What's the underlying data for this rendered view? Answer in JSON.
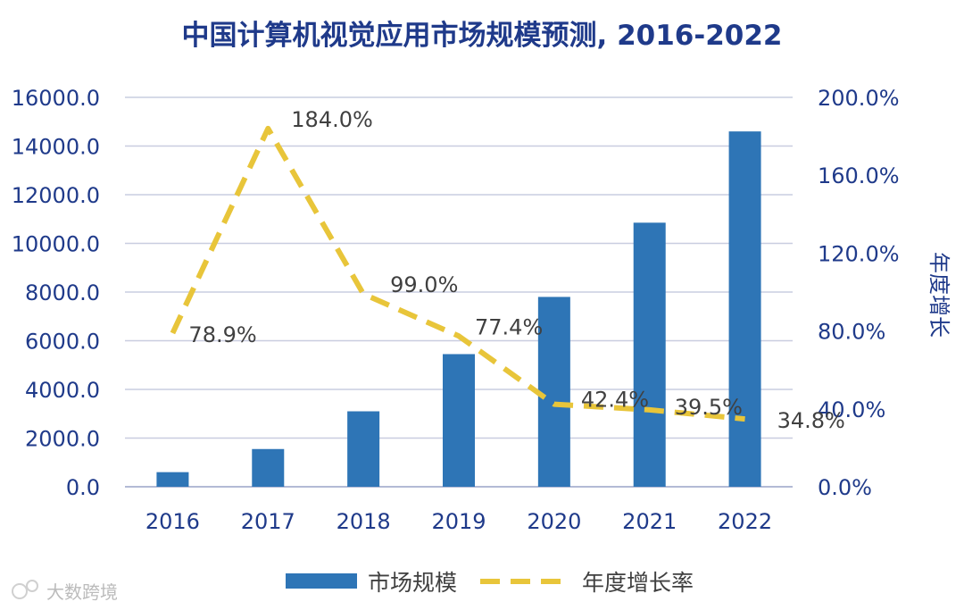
{
  "chart_data": {
    "type": "bar",
    "title": "中国计算机视觉应用市场规模预测, 2016-2022",
    "categories": [
      "2016",
      "2017",
      "2018",
      "2019",
      "2020",
      "2021",
      "2022"
    ],
    "series": [
      {
        "name": "市场规模",
        "type": "bar",
        "axis": "left",
        "color": "#2E75B6",
        "values": [
          600,
          1550,
          3100,
          5450,
          7800,
          10850,
          14600
        ]
      },
      {
        "name": "年度增长率",
        "type": "line",
        "axis": "right",
        "color": "#E8C53A",
        "style": "dashed",
        "values": [
          78.9,
          184.0,
          99.0,
          77.4,
          42.4,
          39.5,
          34.8
        ],
        "labels": [
          "78.9%",
          "184.0%",
          "99.0%",
          "77.4%",
          "42.4%",
          "39.5%",
          "34.8%"
        ]
      }
    ],
    "y_left": {
      "ylim": [
        0,
        16000
      ],
      "ticks": [
        0,
        2000,
        4000,
        6000,
        8000,
        10000,
        12000,
        14000,
        16000
      ],
      "tick_labels": [
        "0.0",
        "2000.0",
        "4000.0",
        "6000.0",
        "8000.0",
        "10000.0",
        "12000.0",
        "14000.0",
        "16000.0"
      ]
    },
    "y_right": {
      "label": "年度增长",
      "ylim": [
        0,
        200
      ],
      "ticks": [
        0,
        40,
        80,
        120,
        160,
        200
      ],
      "tick_labels": [
        "0.0%",
        "40.0%",
        "80.0%",
        "120.0%",
        "160.0%",
        "200.0%"
      ]
    },
    "grid": true,
    "legend": {
      "position": "bottom",
      "entries": [
        "市场规模",
        "年度增长率"
      ]
    }
  },
  "watermark": {
    "text": "大数跨境",
    "icon": "logo-icon"
  }
}
